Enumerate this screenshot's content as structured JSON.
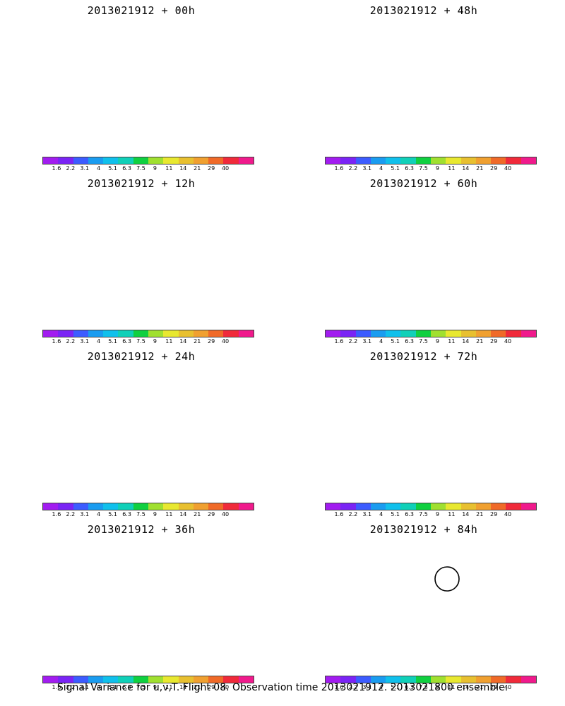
{
  "footer": "Signal Variance for u,v,T. Flight 08. Observation time 2013021912. 2013021800 ensemble.",
  "colorbar": {
    "labels": [
      "1.6",
      "2.2",
      "3.1",
      "4",
      "5.1",
      "6.3",
      "7.5",
      "9",
      "11",
      "14",
      "21",
      "29",
      "40"
    ],
    "colors": [
      "#a21cf0",
      "#7a24f5",
      "#3c5cff",
      "#1a9cf0",
      "#10c0ec",
      "#10d0b8",
      "#10d040",
      "#a0e030",
      "#e8e830",
      "#e8c030",
      "#f0a030",
      "#f06a28",
      "#f02a3a",
      "#f01a8c"
    ]
  },
  "panels": [
    {
      "title": "2013021912 + 00h",
      "level": 0
    },
    {
      "title": "2013021912 + 48h",
      "level": 4
    },
    {
      "title": "2013021912 + 12h",
      "level": 1
    },
    {
      "title": "2013021912 + 60h",
      "level": 5
    },
    {
      "title": "2013021912 + 24h",
      "level": 2
    },
    {
      "title": "2013021912 + 72h",
      "level": 6
    },
    {
      "title": "2013021912 + 36h",
      "level": 3
    },
    {
      "title": "2013021912 + 84h",
      "level": 7
    }
  ]
}
